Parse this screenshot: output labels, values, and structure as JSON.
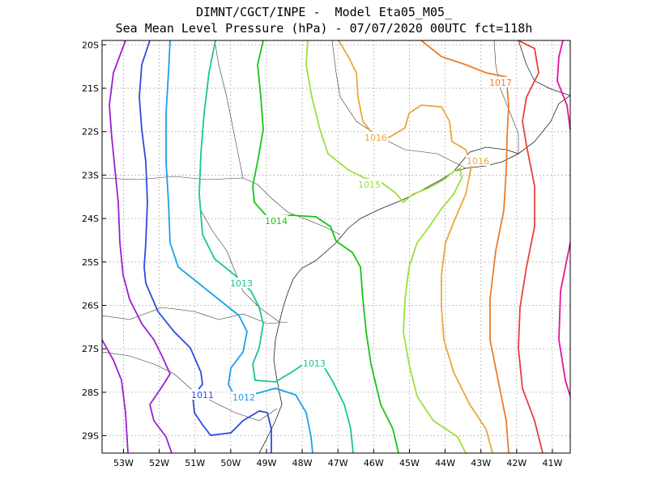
{
  "title": {
    "line1": "DIMNT/CGCT/INPE -  Model Eta05_M05_",
    "line2": "Sea Mean Level Pressure (hPa) - 07/07/2020 00UTC fct=118h"
  },
  "axes": {
    "lon_ticks": [
      "53W",
      "52W",
      "51W",
      "50W",
      "49W",
      "48W",
      "47W",
      "46W",
      "45W",
      "44W",
      "43W",
      "42W",
      "41W"
    ],
    "lat_ticks": [
      "20S",
      "21S",
      "22S",
      "23S",
      "24S",
      "25S",
      "26S",
      "27S",
      "28S",
      "29S"
    ],
    "lon_range": [
      -53.6,
      -40.5
    ],
    "lat_range": [
      -29.4,
      -19.9
    ],
    "grid": true
  },
  "contours": {
    "levels": [
      1010,
      1011,
      1012,
      1013,
      1014,
      1015,
      1016,
      1017,
      1018,
      1019
    ],
    "colors": {
      "1010": "#9b1fd0",
      "1011": "#2b4cdf",
      "1012": "#1aa0e6",
      "1013": "#17c49a",
      "1014": "#16c416",
      "1015": "#9be03a",
      "1016": "#e6a93a",
      "1017": "#ec7c2a",
      "1018": "#e8403a",
      "1019": "#e6139a"
    },
    "labels": [
      {
        "text": "1011",
        "level": 1011
      },
      {
        "text": "1012",
        "level": 1012
      },
      {
        "text": "1013",
        "level": 1013
      },
      {
        "text": "1013",
        "level": 1013
      },
      {
        "text": "1014",
        "level": 1014
      },
      {
        "text": "1015",
        "level": 1015
      },
      {
        "text": "1016",
        "level": 1016
      },
      {
        "text": "1016",
        "level": 1016
      },
      {
        "text": "1017",
        "level": 1017
      }
    ]
  }
}
